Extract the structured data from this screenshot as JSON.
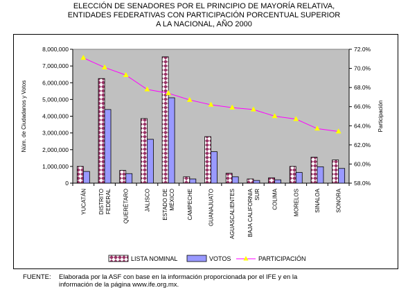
{
  "title_lines": [
    "ELECCIÓN DE SENADORES POR EL PRINCIPIO DE MAYORÍA RELATIVA,",
    "ENTIDADES FEDERATIVAS CON PARTICIPACIÓN PORCENTUAL SUPERIOR",
    "A LA NACIONAL, AÑO 2000"
  ],
  "source": {
    "label": "FUENTE:",
    "line1": "Elaborada por la ASF con base en la información proporcionada por el IFE y en la",
    "line2": "información de la página www.ife.org.mx."
  },
  "chart_data": {
    "type": "bar",
    "categories": [
      "YUCATÁN",
      "DISTRITO FEDERAL",
      "QUERÉTARO",
      "JALISCO",
      "ESTADO DE MÉXICO",
      "CAMPECHE",
      "GUANAJUATO",
      "AGUASCALIENTES",
      "BAJA CALIFORNIA SUR",
      "COLIMA",
      "MORELOS",
      "SINALOA",
      "SONORA"
    ],
    "category_lines": [
      [
        "YUCATÁN"
      ],
      [
        "DISTRITO",
        "FEDERAL"
      ],
      [
        "QUERÉTARO"
      ],
      [
        "JALISCO"
      ],
      [
        "ESTADO DE",
        "MÉXICO"
      ],
      [
        "CAMPECHE"
      ],
      [
        "GUANAJUATO"
      ],
      [
        "AGUASCALIENTES"
      ],
      [
        "BAJA CALIFORNIA",
        "SUR"
      ],
      [
        "COLIMA"
      ],
      [
        "MORELOS"
      ],
      [
        "SINALOA"
      ],
      [
        "SONORA"
      ]
    ],
    "series": [
      {
        "name": "LISTA NOMINAL",
        "axis": "left",
        "kind": "bar",
        "values": [
          1000000,
          6250000,
          760000,
          3860000,
          7550000,
          380000,
          2780000,
          590000,
          250000,
          320000,
          1000000,
          1550000,
          1390000
        ]
      },
      {
        "name": "VOTOS",
        "axis": "left",
        "kind": "bar",
        "values": [
          700000,
          4400000,
          570000,
          2620000,
          5100000,
          250000,
          1880000,
          380000,
          160000,
          200000,
          640000,
          980000,
          880000
        ]
      },
      {
        "name": "PARTICIPACIÓN",
        "axis": "right",
        "kind": "line",
        "values": [
          71.1,
          70.1,
          69.3,
          67.8,
          67.4,
          66.7,
          66.2,
          65.9,
          65.7,
          65.0,
          64.7,
          63.7,
          63.4
        ]
      }
    ],
    "ylabel": "Núm. de Ciudadanos y Votos",
    "y2label": "Participación",
    "ylim": [
      0,
      8000000
    ],
    "y2lim": [
      58,
      72
    ],
    "yticks": [
      "0",
      "1,000,000",
      "2,000,000",
      "3,000,000",
      "4,000,000",
      "5,000,000",
      "6,000,000",
      "7,000,000",
      "8,000,000"
    ],
    "y2ticks": [
      "58.0%",
      "60.0%",
      "62.0%",
      "64.0%",
      "66.0%",
      "68.0%",
      "70.0%",
      "72.0%"
    ],
    "legend_position": "bottom",
    "colors": {
      "plot_bg": "#c0c0c0",
      "lista_nominal_fill": "#ffffff",
      "lista_nominal_pattern": "#993366",
      "votos_fill": "#9999ff",
      "participacion_line": "#ff00ff",
      "participacion_marker": "#ffff00"
    }
  }
}
